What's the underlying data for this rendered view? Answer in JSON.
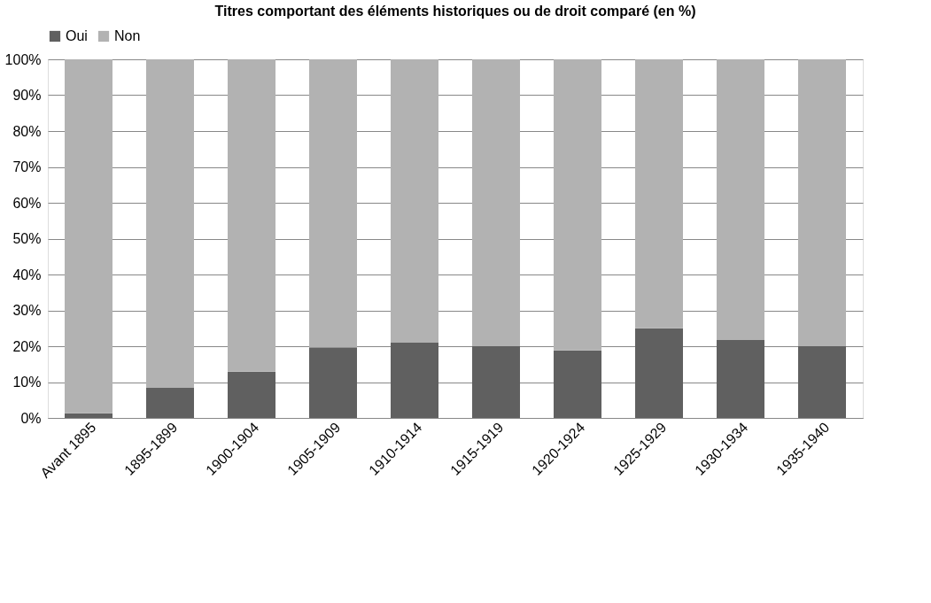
{
  "chart_data": {
    "type": "bar",
    "title": "Titres comportant des éléments historiques ou de droit comparé (en %)",
    "categories": [
      "Avant 1895",
      "1895-1899",
      "1900-1904",
      "1905-1909",
      "1910-1914",
      "1915-1919",
      "1920-1924",
      "1925-1929",
      "1930-1934",
      "1935-1940"
    ],
    "series": [
      {
        "name": "Oui",
        "color": "#606060",
        "values": [
          1.3,
          8.4,
          12.9,
          19.7,
          21.0,
          20.0,
          18.8,
          25.0,
          21.7,
          20.0
        ]
      },
      {
        "name": "Non",
        "color": "#b2b2b2",
        "values": [
          98.7,
          91.6,
          87.1,
          80.3,
          79.0,
          80.0,
          81.2,
          75.0,
          78.3,
          80.0
        ]
      }
    ],
    "stacked": true,
    "ylim": [
      0,
      100
    ],
    "yticks": [
      {
        "value": 0,
        "label": "0%"
      },
      {
        "value": 10,
        "label": "10%"
      },
      {
        "value": 20,
        "label": "20%"
      },
      {
        "value": 30,
        "label": "30%"
      },
      {
        "value": 40,
        "label": "40%"
      },
      {
        "value": 50,
        "label": "50%"
      },
      {
        "value": 60,
        "label": "60%"
      },
      {
        "value": 70,
        "label": "70%"
      },
      {
        "value": 80,
        "label": "80%"
      },
      {
        "value": 90,
        "label": "90%"
      },
      {
        "value": 100,
        "label": "100%"
      }
    ],
    "grid": "y",
    "legend": "top"
  }
}
